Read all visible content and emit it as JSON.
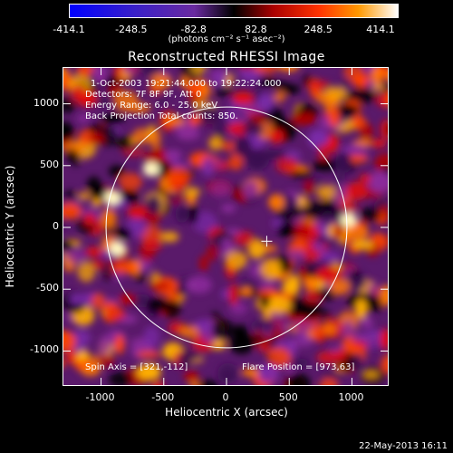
{
  "colorbar": {
    "ticks": [
      "-414.1",
      "-248.5",
      "-82.8",
      "82.8",
      "248.5",
      "414.1"
    ],
    "units": "(photons cm⁻² s⁻¹ asec⁻²)"
  },
  "title": "Reconstructed RHESSI Image",
  "annotations": {
    "time_range": "1-Oct-2003 19:21:44.000 to 19:22:24.000",
    "detectors": "Detectors: 7F 8F 9F, Att 0",
    "energy": "Energy Range: 6.0 - 25.0 keV",
    "method": "Back Projection    Total counts: 850.",
    "spin_axis": "Spin Axis = [321,-112]",
    "flare_position": "Flare Position = [973,63]"
  },
  "axes": {
    "xlabel": "Heliocentric X (arcsec)",
    "ylabel": "Heliocentric Y (arcsec)",
    "xticks": [
      "-1000",
      "-500",
      "0",
      "500",
      "1000"
    ],
    "yticks": [
      "1000",
      "500",
      "0",
      "-500",
      "-1000"
    ],
    "xtick_values": [
      -1000,
      -500,
      0,
      500,
      1000
    ],
    "ytick_values": [
      1000,
      500,
      0,
      -500,
      -1000
    ],
    "xlim": [
      -1300,
      1300
    ],
    "ylim": [
      -1290,
      1290
    ]
  },
  "markers": {
    "spin_axis_cross": [
      321,
      -112
    ],
    "flare_position": [
      973,
      63
    ]
  },
  "footer_date": "22-May-2013 16:11",
  "colors": {
    "colormap": [
      "#0000ff",
      "#6a2aa0",
      "#000000",
      "#cc0000",
      "#ff6600",
      "#ffcc00",
      "#ffffff"
    ]
  }
}
